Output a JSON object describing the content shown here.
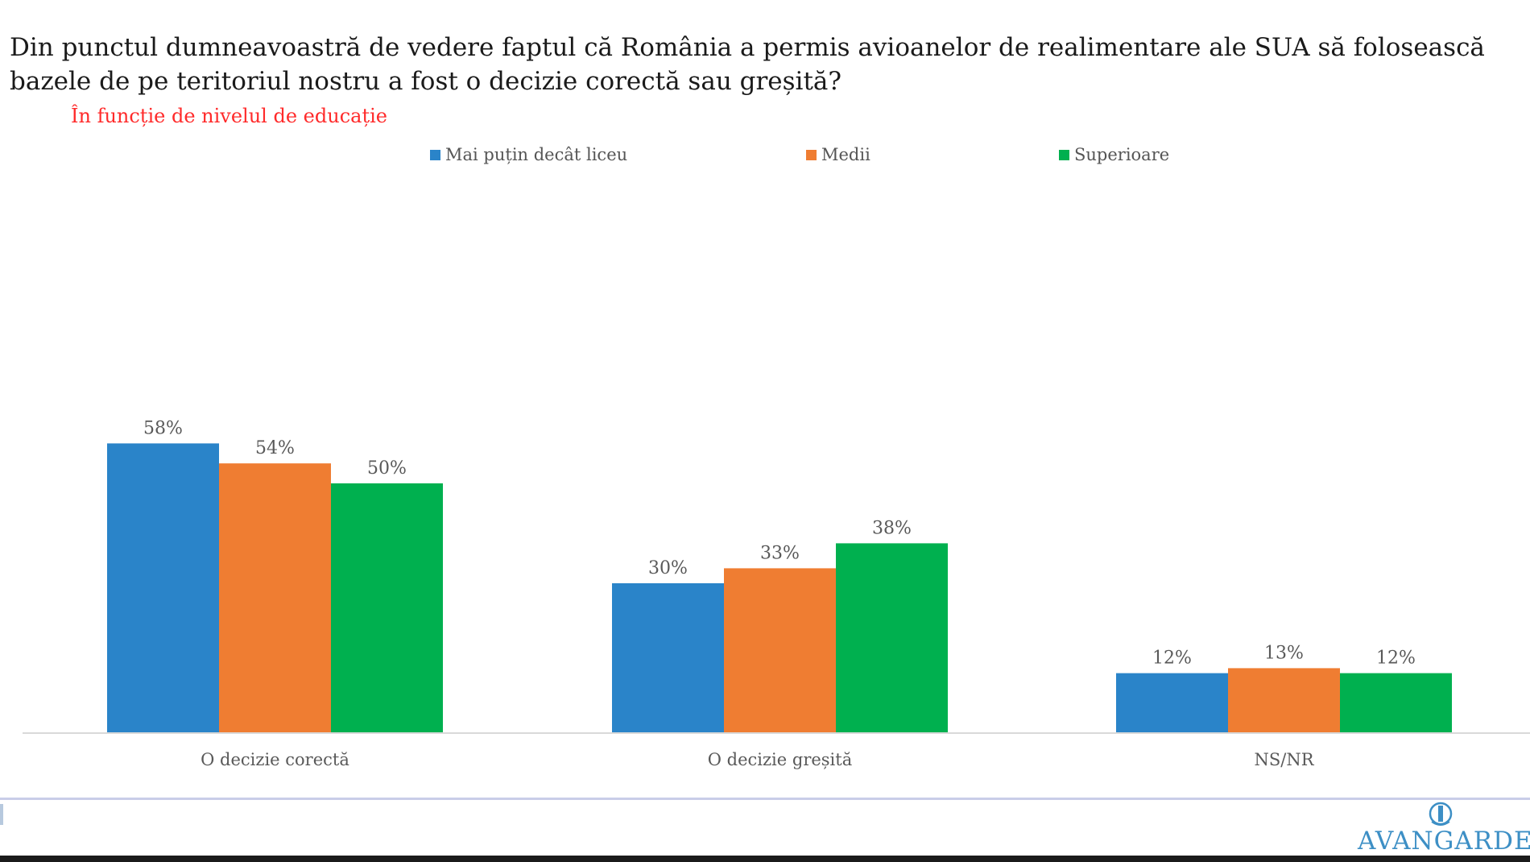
{
  "chart_data": {
    "type": "bar",
    "title": "Din punctul dumneavoastră de vedere faptul că România a permis avioanelor de realimentare ale SUA să folosească bazele de pe teritoriul nostru a fost o decizie corectă sau greșită?",
    "subtitle": "În funcție de nivelul de educație",
    "categories": [
      "O decizie corectă",
      "O decizie greșită",
      "NS/NR"
    ],
    "series": [
      {
        "name": "Mai puțin decât liceu",
        "color": "#2a84c9",
        "values": [
          58,
          30,
          12
        ]
      },
      {
        "name": "Medii",
        "color": "#ef7d32",
        "values": [
          54,
          33,
          13
        ]
      },
      {
        "name": "Superioare",
        "color": "#00b04f",
        "values": [
          50,
          38,
          12
        ]
      }
    ],
    "value_suffix": "%",
    "ylim": [
      0,
      100
    ],
    "grid": false,
    "legend_position": "top"
  },
  "logo": {
    "text": "AVANGARDE",
    "icon": "avangarde-logo-icon"
  }
}
